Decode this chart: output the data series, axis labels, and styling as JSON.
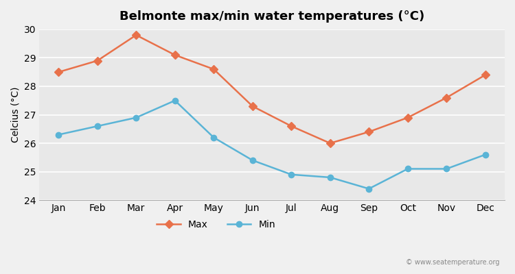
{
  "months": [
    "Jan",
    "Feb",
    "Mar",
    "Apr",
    "May",
    "Jun",
    "Jul",
    "Aug",
    "Sep",
    "Oct",
    "Nov",
    "Dec"
  ],
  "max_temps": [
    28.5,
    28.9,
    29.8,
    29.1,
    28.6,
    27.3,
    26.6,
    26.0,
    26.4,
    26.9,
    27.6,
    28.4
  ],
  "min_temps": [
    26.3,
    26.6,
    26.9,
    27.5,
    26.2,
    25.4,
    24.9,
    24.8,
    24.4,
    25.1,
    25.1,
    25.6
  ],
  "max_color": "#e8714a",
  "min_color": "#5ab4d6",
  "title": "Belmonte max/min water temperatures (°C)",
  "ylabel": "Celcius (°C)",
  "ylim": [
    24,
    30
  ],
  "yticks": [
    24,
    25,
    26,
    27,
    28,
    29,
    30
  ],
  "background_color": "#f0f0f0",
  "plot_bg_color": "#e8e8e8",
  "grid_color": "#ffffff",
  "title_fontsize": 13,
  "axis_fontsize": 10,
  "legend_labels": [
    "Max",
    "Min"
  ],
  "watermark": "© www.seatemperature.org"
}
